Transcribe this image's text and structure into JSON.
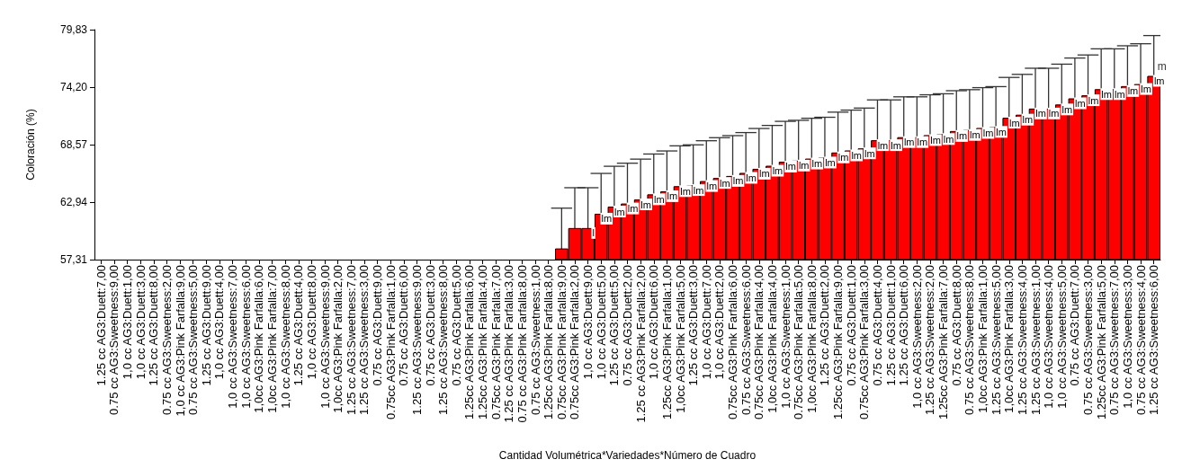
{
  "chart_data": {
    "type": "bar",
    "xlabel": "Cantidad Volumétrica*Variedades*Número de Cuadro",
    "ylabel": "Coloración (%)",
    "categories": [
      "1.25 cc AG3:Duett:7,00",
      "0.75 cc AG3:Sweetness:9,00",
      "1,0 cc AG3:Duett:1,00",
      "1,0 cc AG3:Duett:3,00",
      "1.25 cc AG3:Duett:8,00",
      "0.75 cc AG3:Sweetness:2,00",
      "1,0 cc AG3:Pink Farfalla:9,00",
      "0.75 cc AG3:Sweetness:5,00",
      "1.25 cc AG3:Duett:9,00",
      "1,0 cc AG3:Duett:4,00",
      "1,0 cc AG3:Sweetness:7,00",
      "1,0 cc AG3:Sweetness:6,00",
      "1,0cc AG3:Pink Farfalla:6,00",
      "1,0cc AG3:Pink Farfalla:7,00",
      "1,0 cc AG3:Sweetness:8,00",
      "1.25 cc AG3:Duett:4,00",
      "1,0 cc AG3:Duett:8,00",
      "1,0 cc AG3:Sweetness:9,00",
      "1,0cc AG3:Pink Farfalla:2,00",
      "1.25 cc AG3:Sweetness:7,00",
      "1.25 cc AG3:Sweetness:3,00",
      "0.75 cc AG3:Duett:9,00",
      "0.75cc AG3:Pink Farfalla:1,00",
      "0.75 cc AG3:Duett:6,00",
      "1.25 cc AG3:Sweetness:9,00",
      "0.75 cc AG3:Duett:3,00",
      "1.25 cc AG3:Sweetness:8,00",
      "0.75 cc AG3:Duett:5,00",
      "1.25cc AG3:Pink Farfalla:6,00",
      "1.25cc AG3:Pink Farfalla:4,00",
      "0.75cc AG3:Pink Farfalla:7,00",
      "1.25 cc AG3:Pink Farfalla:3,00",
      "0.75 cc AG3:Pink Farfalla:8,00",
      "0.75 cc AG3:Sweetness:1,00",
      "1.25cc AG3:Pink Farfalla:8,00",
      "0.75cc AG3:Pink Farfalla:9,00",
      "0.75cc AG3:Pink Farfalla:2,00",
      "1,0 cc AG3:Duett:9,00",
      "1,0 cc AG3:Duett:5,00",
      "1.25 cc AG3:Duett:5,00",
      "0.75 cc AG3:Duett:2,00",
      "1.25 cc AG3:Pink Farfalla:2,00",
      "1,0 cc AG3:Duett:6,00",
      "1.25cc AG3:Pink Farfalla:1,00",
      "1,0cc AG3:Pink Farfalla:5,00",
      "1.25 cc AG3:Duett:3,00",
      "1,0 cc AG3:Duett:7,00",
      "1,0 cc AG3:Duett:2,00",
      "0.75cc AG3:Pink Farfalla:6,00",
      "0.75 cc AG3:Sweetness:6,00",
      "0.75cc AG3:Pink Farfalla:4,00",
      "1,0cc AG3:Pink Farfalla:4,00",
      "1,0 cc AG3:Sweetness:1,00",
      "0.75cc AG3:Pink Farfalla:5,00",
      "1,0cc AG3:Pink Farfalla:8,00",
      "1.25 cc AG3:Duett:2,00",
      "1.25cc AG3:Pink Farfalla:9,00",
      "0.75 cc AG3:Duett:1,00",
      "0.75cc AG3:Pink Farfalla:3,00",
      "0.75 cc AG3:Duett:4,00",
      "1.25 cc AG3:Duett:1,00",
      "1.25 cc AG3:Duett:6,00",
      "1,0 cc AG3:Sweetness:2,00",
      "1.25 cc AG3:Sweetness:2,00",
      "1.25cc AG3:Pink Farfalla:7,00",
      "0.75 cc AG3:Duett:8,00",
      "0.75 cc AG3:Sweetness:8,00",
      "1,0cc AG3:Pink Farfalla:1,00",
      "1.25 cc AG3:Sweetness:5,00",
      "1,0cc AG3:Pink Farfalla:3,00",
      "1.25 cc AG3:Sweetness:4,00",
      "1.25 cc AG3:Sweetness:1,00",
      "1,0 cc AG3:Sweetness:4,00",
      "1,0 cc AG3:Sweetness:5,00",
      "0.75 cc AG3:Duett:7,00",
      "0.75 cc AG3:Sweetness:3,00",
      "1.25cc AG3:Pink Farfalla:5,00",
      "0.75 cc AG3:Sweetness:7,00",
      "1,0 cc AG3:Sweetness:3,00",
      "0.75 cc AG3:Sweetness:4,00",
      "1.25 cc AG3:Sweetness:6,00"
    ],
    "values": [
      null,
      null,
      null,
      null,
      null,
      null,
      null,
      null,
      null,
      null,
      null,
      null,
      null,
      null,
      null,
      null,
      null,
      null,
      null,
      null,
      null,
      null,
      null,
      null,
      null,
      null,
      null,
      null,
      null,
      null,
      null,
      null,
      null,
      null,
      null,
      58.4,
      60.4,
      60.4,
      61.8,
      62.5,
      62.8,
      63.2,
      63.7,
      64.0,
      64.5,
      64.6,
      65.0,
      65.3,
      65.5,
      65.8,
      66.2,
      66.5,
      66.9,
      67.0,
      67.2,
      67.3,
      67.8,
      68.0,
      68.2,
      69.0,
      69.0,
      69.3,
      69.3,
      69.5,
      69.6,
      69.9,
      70.0,
      70.2,
      70.3,
      71.2,
      71.5,
      72.1,
      72.1,
      72.5,
      73.1,
      73.4,
      74.0,
      74.0,
      74.3,
      74.5,
      75.3
    ],
    "errors": [
      null,
      null,
      null,
      null,
      null,
      null,
      null,
      null,
      null,
      null,
      null,
      null,
      null,
      null,
      null,
      null,
      null,
      null,
      null,
      null,
      null,
      null,
      null,
      null,
      null,
      null,
      null,
      null,
      null,
      null,
      null,
      null,
      null,
      null,
      null,
      3.95,
      3.95,
      3.95,
      3.95,
      3.95,
      3.95,
      3.95,
      3.95,
      3.95,
      3.95,
      3.95,
      3.95,
      3.95,
      3.95,
      3.95,
      3.95,
      3.95,
      3.95,
      3.95,
      3.95,
      3.95,
      3.95,
      3.95,
      3.95,
      3.95,
      3.95,
      3.95,
      3.95,
      3.95,
      3.95,
      3.95,
      3.95,
      3.95,
      3.95,
      3.95,
      3.95,
      3.95,
      3.95,
      3.95,
      3.95,
      3.95,
      3.95,
      3.95,
      3.95,
      3.95,
      3.95
    ],
    "value_labels": [
      null,
      null,
      null,
      null,
      null,
      null,
      null,
      null,
      null,
      null,
      null,
      null,
      null,
      null,
      null,
      null,
      null,
      null,
      null,
      null,
      null,
      null,
      null,
      null,
      null,
      null,
      null,
      null,
      null,
      null,
      null,
      null,
      null,
      null,
      null,
      null,
      null,
      "l",
      "lm",
      "lm",
      "lm",
      "lm",
      "lm",
      "lm",
      "lm",
      "lm",
      "lm",
      "lm",
      "lm",
      "lm",
      "lm",
      "lm",
      "lm",
      "lm",
      "lm",
      "lm",
      "lm",
      "lm",
      "lm",
      "lm",
      "lm",
      "lm",
      "lm",
      "lm",
      "lm",
      "lm",
      "lm",
      "lm",
      "lm",
      "lm",
      "lm",
      "lm",
      "lm",
      "lm",
      "lm",
      "lm",
      "lm",
      "lm",
      "lm",
      "lm",
      "lm"
    ],
    "annotations": [
      {
        "text": "m",
        "x": "1.25 cc AG3:Sweetness:6,00",
        "y": 75.9
      }
    ],
    "color": "#ff0000",
    "ylim": [
      57.31,
      79.83
    ],
    "yticks": [
      {
        "value": 57.31,
        "label": "57,31"
      },
      {
        "value": 62.94,
        "label": "62,94"
      },
      {
        "value": 68.57,
        "label": "68,57"
      },
      {
        "value": 74.2,
        "label": "74,20"
      },
      {
        "value": 79.83,
        "label": "79,83"
      }
    ],
    "grid": false
  }
}
